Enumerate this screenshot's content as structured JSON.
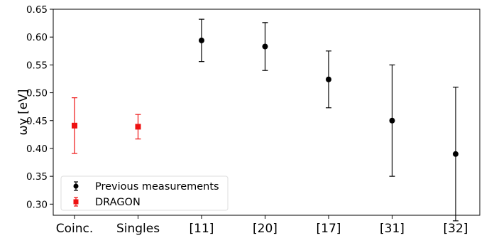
{
  "chart_data": {
    "type": "scatter",
    "ylabel": "ωγ [eV]",
    "ylim": [
      0.28,
      0.65
    ],
    "yticks": [
      "0.30",
      "0.35",
      "0.40",
      "0.45",
      "0.50",
      "0.55",
      "0.60",
      "0.65"
    ],
    "categories": [
      "Coinc.",
      "Singles",
      "[11]",
      "[20]",
      "[17]",
      "[31]",
      "[32]"
    ],
    "grid": false,
    "legend_position": "bottom-left",
    "series": [
      {
        "name": "Previous measurements",
        "color": "#000000",
        "marker": "circle",
        "points": [
          {
            "category": "[11]",
            "y": 0.594,
            "err_low": 0.038,
            "err_high": 0.038
          },
          {
            "category": "[20]",
            "y": 0.583,
            "err_low": 0.043,
            "err_high": 0.043
          },
          {
            "category": "[17]",
            "y": 0.524,
            "err_low": 0.051,
            "err_high": 0.051
          },
          {
            "category": "[31]",
            "y": 0.45,
            "err_low": 0.1,
            "err_high": 0.1
          },
          {
            "category": "[32]",
            "y": 0.39,
            "err_low": 0.12,
            "err_high": 0.12
          }
        ]
      },
      {
        "name": "DRAGON",
        "color": "#ee1111",
        "marker": "square",
        "points": [
          {
            "category": "Coinc.",
            "y": 0.441,
            "err_low": 0.05,
            "err_high": 0.05
          },
          {
            "category": "Singles",
            "y": 0.439,
            "err_low": 0.022,
            "err_high": 0.022
          }
        ]
      }
    ]
  }
}
